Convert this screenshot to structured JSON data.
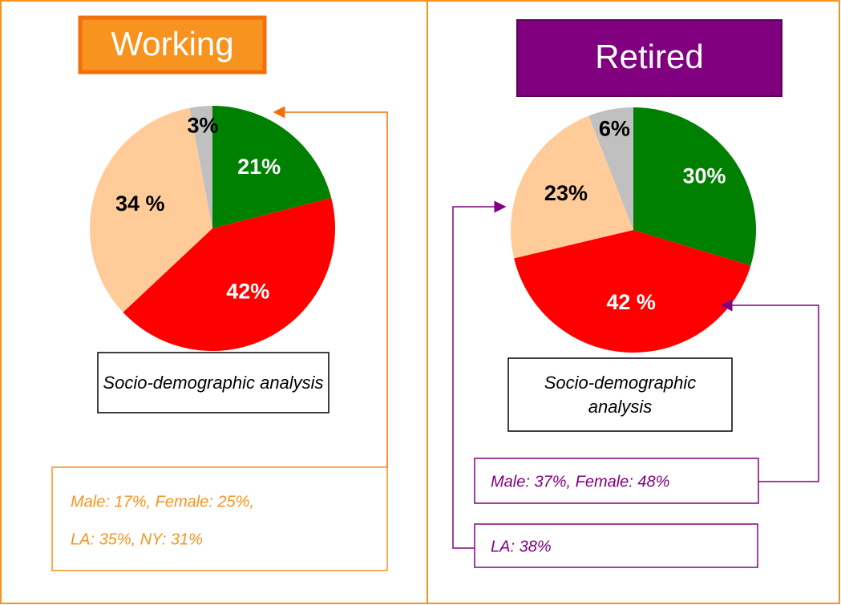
{
  "chart_data": [
    {
      "type": "pie",
      "title": "Working",
      "values": [
        21,
        42,
        34,
        3
      ],
      "value_labels": [
        "21%",
        "42%",
        "34 %",
        "3%"
      ],
      "colors": [
        "#008000",
        "#ff0000",
        "#ffcc99",
        "#c0c0c0"
      ],
      "label_colors": [
        "#ffffff",
        "#ffffff",
        "#000000",
        "#000000"
      ],
      "caption": "Socio-demographic analysis",
      "annotations": [
        "Male: 17%, Female: 25%,",
        "LA: 35%, NY: 31%"
      ]
    },
    {
      "type": "pie",
      "title": "Retired",
      "values": [
        30,
        42,
        23,
        6
      ],
      "value_labels": [
        "30%",
        "42 %",
        "23%",
        "6%"
      ],
      "colors": [
        "#008000",
        "#ff0000",
        "#ffcc99",
        "#c0c0c0"
      ],
      "label_colors": [
        "#ffffff",
        "#ffffff",
        "#000000",
        "#000000"
      ],
      "caption": "Socio-demographic analysis",
      "annotations": [
        "Male: 37%, Female: 48%",
        "LA: 38%"
      ]
    }
  ]
}
